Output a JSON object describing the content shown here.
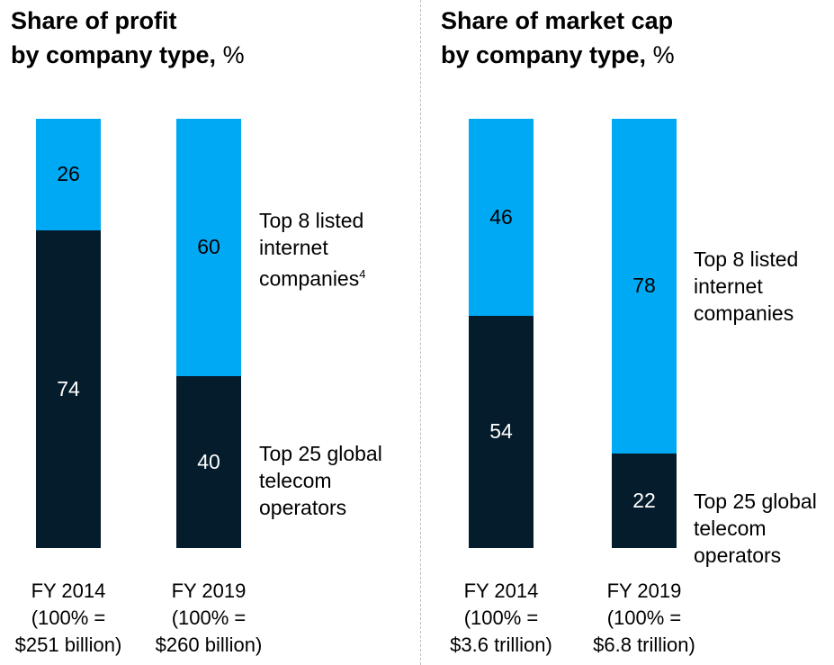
{
  "colors": {
    "internet": "#00a9f4",
    "telecom": "#051c2c",
    "divider": "#bdbdbd"
  },
  "chart_data": [
    {
      "type": "bar",
      "stacked": true,
      "title": "Share of profit by company type, %",
      "title_line1": "Share of profit",
      "title_line2": "by company type,",
      "unit": "%",
      "categories": [
        "FY 2014",
        "FY 2019"
      ],
      "category_notes": [
        [
          "(100% =",
          "$251 billion)"
        ],
        [
          "(100% =",
          "$260 billion)"
        ]
      ],
      "series": [
        {
          "name": "Top 25 global telecom operators",
          "lines": [
            "Top 25 global",
            "telecom",
            "operators"
          ],
          "values": [
            74,
            40
          ]
        },
        {
          "name": "Top 8 listed internet companies",
          "lines": [
            "Top 8 listed",
            "internet",
            "companies"
          ],
          "footnote": "4",
          "values": [
            26,
            60
          ]
        }
      ],
      "ylim": [
        0,
        100
      ]
    },
    {
      "type": "bar",
      "stacked": true,
      "title": "Share of market cap by company type, %",
      "title_line1": "Share of market cap",
      "title_line2": "by company type,",
      "unit": "%",
      "categories": [
        "FY 2014",
        "FY 2019"
      ],
      "category_notes": [
        [
          "(100% =",
          "$3.6 trillion)"
        ],
        [
          "(100% =",
          "$6.8 trillion)"
        ]
      ],
      "series": [
        {
          "name": "Top 25 global telecom operators",
          "lines": [
            "Top 25 global",
            "telecom",
            "operators"
          ],
          "values": [
            54,
            22
          ]
        },
        {
          "name": "Top 8 listed internet companies",
          "lines": [
            "Top 8 listed",
            "internet",
            "companies"
          ],
          "footnote": "",
          "values": [
            46,
            78
          ]
        }
      ],
      "ylim": [
        0,
        100
      ]
    }
  ]
}
